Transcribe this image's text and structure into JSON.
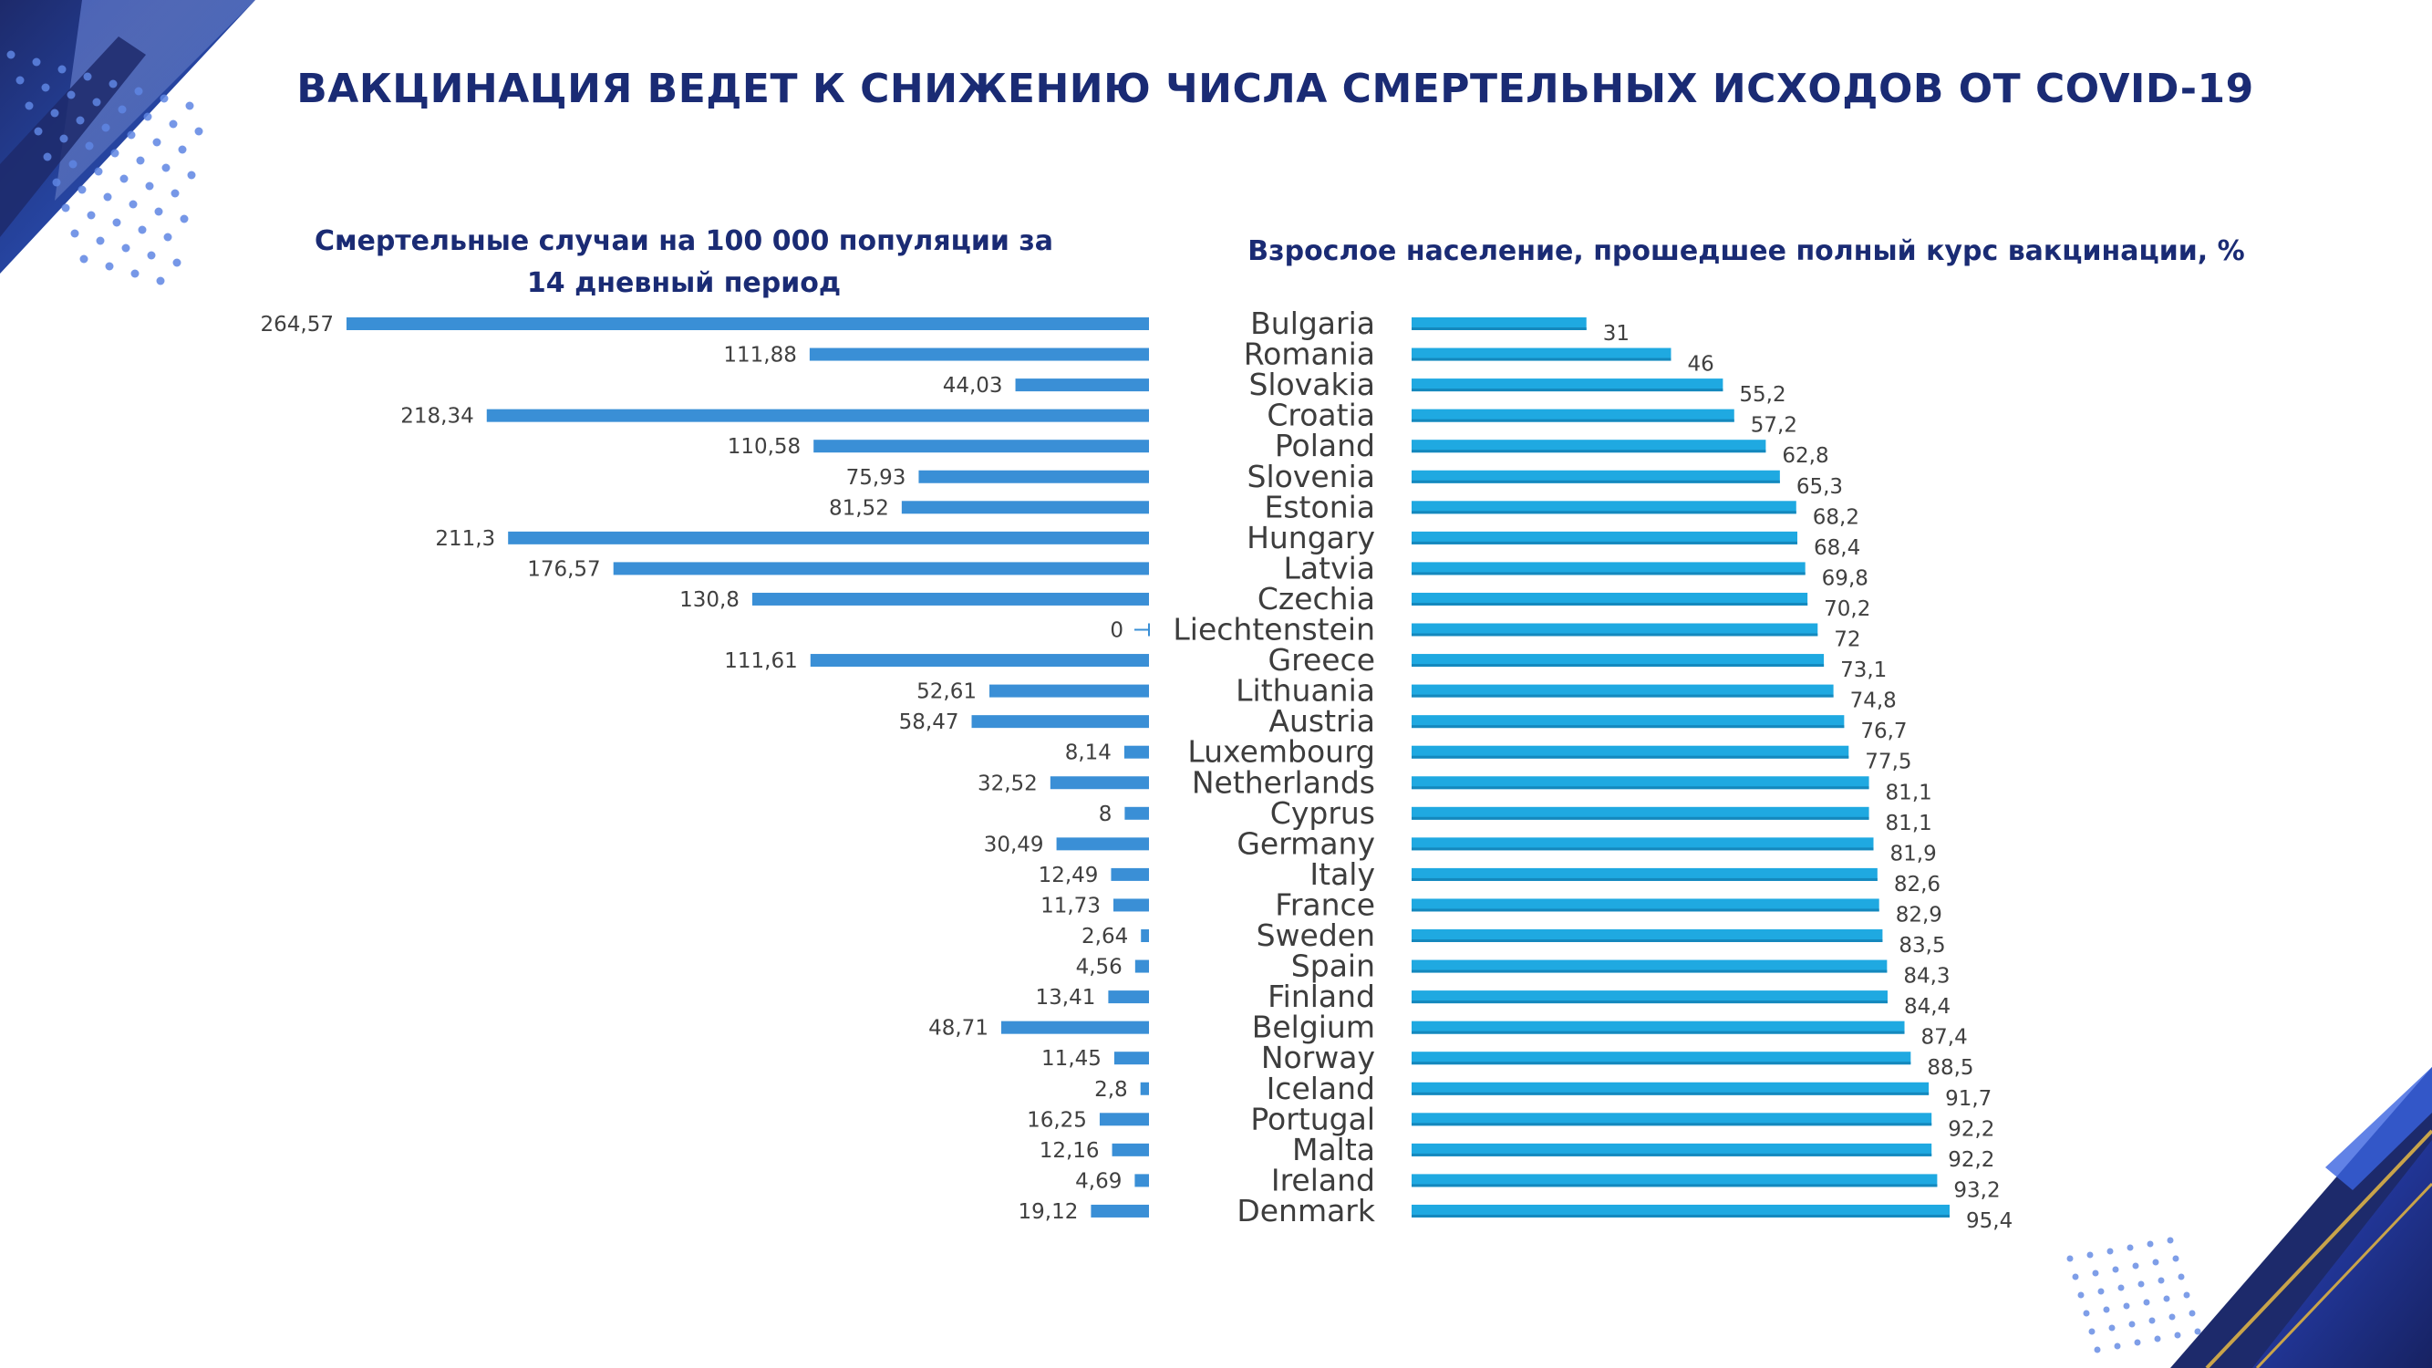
{
  "title": "ВАКЦИНАЦИЯ ВЕДЕТ К СНИЖЕНИЮ ЧИСЛА СМЕРТЕЛЬНЫХ ИСХОДОВ ОТ COVID-19",
  "colors": {
    "title": "#1a2b74",
    "deaths_bar": "#3a8fd6",
    "vaccination_bar": "#1fa9e1",
    "decor_navy": "#1d2a6b",
    "decor_gold": "#c9a44a"
  },
  "chart_data": [
    {
      "type": "bar",
      "orientation": "horizontal",
      "direction": "right-to-left",
      "title_line1": "Смертельные случаи на 100 000 популяции за",
      "title_line2": "14 дневный период",
      "categories": [
        "Bulgaria",
        "Romania",
        "Slovakia",
        "Croatia",
        "Poland",
        "Slovenia",
        "Estonia",
        "Hungary",
        "Latvia",
        "Czechia",
        "Liechtenstein",
        "Greece",
        "Lithuania",
        "Austria",
        "Luxembourg",
        "Netherlands",
        "Cyprus",
        "Germany",
        "Italy",
        "France",
        "Sweden",
        "Spain",
        "Finland",
        "Belgium",
        "Norway",
        "Iceland",
        "Portugal",
        "Malta",
        "Ireland",
        "Denmark"
      ],
      "values": [
        264.57,
        111.88,
        44.03,
        218.34,
        110.58,
        75.93,
        81.52,
        211.3,
        176.57,
        130.8,
        0,
        111.61,
        52.61,
        58.47,
        8.14,
        32.52,
        8,
        30.49,
        12.49,
        11.73,
        2.64,
        4.56,
        13.41,
        48.71,
        11.45,
        2.8,
        16.25,
        12.16,
        4.69,
        19.12
      ],
      "labels": [
        "264,57",
        "111,88",
        "44,03",
        "218,34",
        "110,58",
        "75,93",
        "81,52",
        "211,3",
        "176,57",
        "130,8",
        "0",
        "111,61",
        "52,61",
        "58,47",
        "8,14",
        "32,52",
        "8",
        "30,49",
        "12,49",
        "11,73",
        "2,64",
        "4,56",
        "13,41",
        "48,71",
        "11,45",
        "2,8",
        "16,25",
        "12,16",
        "4,69",
        "19,12"
      ],
      "xlim": [
        0,
        264.57
      ],
      "grid": false,
      "legend": "none"
    },
    {
      "type": "bar",
      "orientation": "horizontal",
      "title": "Взрослое население, прошедшее полный курс вакцинации, %",
      "categories": [
        "Bulgaria",
        "Romania",
        "Slovakia",
        "Croatia",
        "Poland",
        "Slovenia",
        "Estonia",
        "Hungary",
        "Latvia",
        "Czechia",
        "Liechtenstein",
        "Greece",
        "Lithuania",
        "Austria",
        "Luxembourg",
        "Netherlands",
        "Cyprus",
        "Germany",
        "Italy",
        "France",
        "Sweden",
        "Spain",
        "Finland",
        "Belgium",
        "Norway",
        "Iceland",
        "Portugal",
        "Malta",
        "Ireland",
        "Denmark"
      ],
      "values": [
        31,
        46,
        55.2,
        57.2,
        62.8,
        65.3,
        68.2,
        68.4,
        69.8,
        70.2,
        72,
        73.1,
        74.8,
        76.7,
        77.5,
        81.1,
        81.1,
        81.9,
        82.6,
        82.9,
        83.5,
        84.3,
        84.4,
        87.4,
        88.5,
        91.7,
        92.2,
        92.2,
        93.2,
        95.4
      ],
      "labels": [
        "31",
        "46",
        "55,2",
        "57,2",
        "62,8",
        "65,3",
        "68,2",
        "68,4",
        "69,8",
        "70,2",
        "72",
        "73,1",
        "74,8",
        "76,7",
        "77,5",
        "81,1",
        "81,1",
        "81,9",
        "82,6",
        "82,9",
        "83,5",
        "84,3",
        "84,4",
        "87,4",
        "88,5",
        "91,7",
        "92,2",
        "92,2",
        "93,2",
        "95,4"
      ],
      "xlim": [
        0,
        95.4
      ],
      "grid": false,
      "legend": "none"
    }
  ]
}
